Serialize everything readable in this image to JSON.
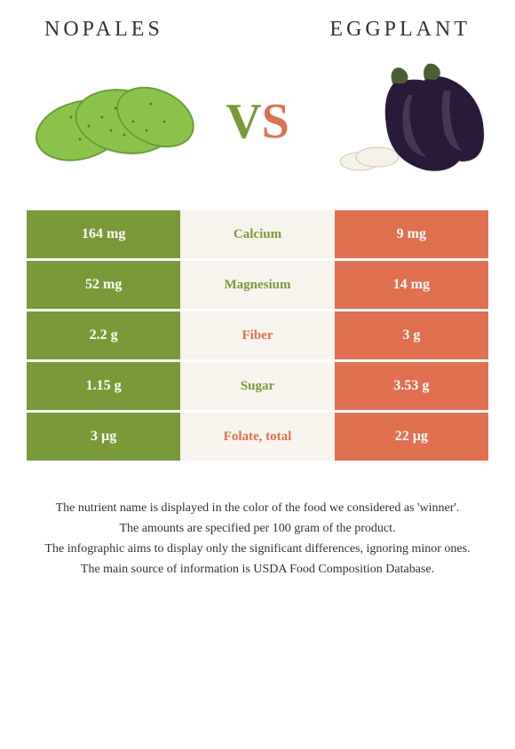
{
  "left_food": "Nopales",
  "right_food": "Eggplant",
  "vs_v": "V",
  "vs_s": "S",
  "colors": {
    "green": "#7a9a3a",
    "orange": "#e07050",
    "mid_bg": "#f7f3ed",
    "white_text": "#ffffff"
  },
  "table": {
    "type": "comparison",
    "rows": [
      {
        "left": "164 mg",
        "label": "Calcium",
        "right": "9 mg",
        "winner": "left"
      },
      {
        "left": "52 mg",
        "label": "Magnesium",
        "right": "14 mg",
        "winner": "left"
      },
      {
        "left": "2.2 g",
        "label": "Fiber",
        "right": "3 g",
        "winner": "right"
      },
      {
        "left": "1.15 g",
        "label": "Sugar",
        "right": "3.53 g",
        "winner": "left"
      },
      {
        "left": "3 µg",
        "label": "Folate, total",
        "right": "22 µg",
        "winner": "right"
      }
    ]
  },
  "footer": [
    "The nutrient name is displayed in the color of the food we considered as 'winner'.",
    "The amounts are specified per 100 gram of the product.",
    "The infographic aims to display only the significant differences, ignoring minor ones.",
    "The main source of information is USDA Food Composition Database."
  ]
}
